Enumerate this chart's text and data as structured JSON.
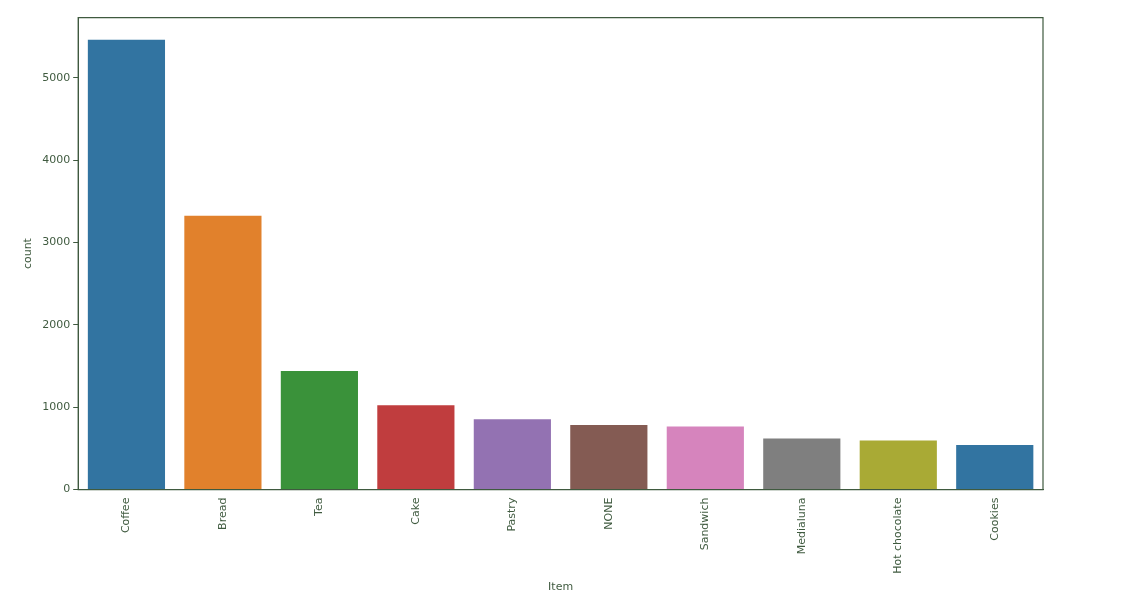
{
  "chart_data": {
    "type": "bar",
    "xlabel": "Item",
    "ylabel": "count",
    "categories": [
      "Coffee",
      "Bread",
      "Tea",
      "Cake",
      "Pastry",
      "NONE",
      "Sandwich",
      "Medialuna",
      "Hot chocolate",
      "Cookies"
    ],
    "values": [
      5460,
      3325,
      1440,
      1025,
      855,
      785,
      765,
      620,
      595,
      540
    ],
    "colors": [
      "#3274a1",
      "#e1812c",
      "#3a923a",
      "#c03d3e",
      "#9372b2",
      "#845b53",
      "#d684bd",
      "#7f7f7f",
      "#a9aa35",
      "#3274a1"
    ],
    "ylim": [
      0,
      5730
    ],
    "yticks": [
      0,
      1000,
      2000,
      3000,
      4000,
      5000
    ],
    "grid": false
  }
}
